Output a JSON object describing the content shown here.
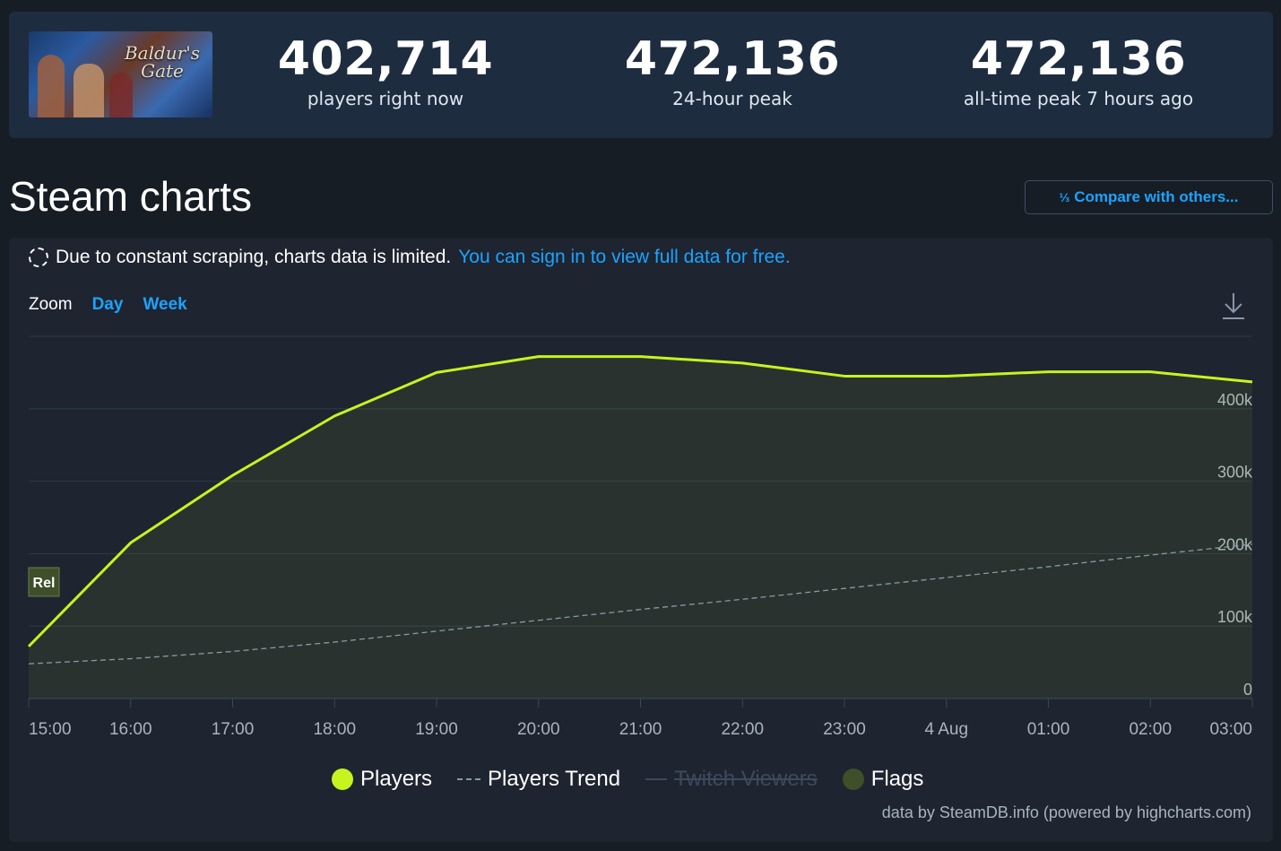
{
  "game": {
    "art_label": "Baldur's Gate"
  },
  "stats": [
    {
      "value": "402,714",
      "label": "players right now"
    },
    {
      "value": "472,136",
      "label": "24-hour peak"
    },
    {
      "value": "472,136",
      "label": "all-time peak 7 hours ago"
    }
  ],
  "page_title": "Steam charts",
  "compare_button": {
    "icon": "fraction-icon",
    "label": "Compare with others..."
  },
  "notice": {
    "text": "Due to constant scraping, charts data is limited.",
    "link": "You can sign in to view full data for free."
  },
  "zoom": {
    "label": "Zoom",
    "options": [
      "Day",
      "Week"
    ]
  },
  "colors": {
    "players": "#c6f41e",
    "trend": "#8a98a8",
    "flags": "#3e4f2a",
    "link": "#1aa4ff"
  },
  "flag_marker": {
    "label": "Rel"
  },
  "legend": [
    {
      "label": "Players",
      "state": "active"
    },
    {
      "label": "Players Trend",
      "state": "active"
    },
    {
      "label": "Twitch Viewers",
      "state": "disabled"
    },
    {
      "label": "Flags",
      "state": "active"
    }
  ],
  "credit": "data by SteamDB.info (powered by highcharts.com)",
  "chart_data": {
    "type": "line",
    "x": [
      "15:00",
      "16:00",
      "17:00",
      "18:00",
      "19:00",
      "20:00",
      "21:00",
      "22:00",
      "23:00",
      "4 Aug",
      "01:00",
      "02:00",
      "03:00"
    ],
    "ylim": [
      0,
      500000
    ],
    "yticks": [
      "0",
      "100k",
      "200k",
      "300k",
      "400k"
    ],
    "yticks_values": [
      0,
      100000,
      200000,
      300000,
      400000
    ],
    "grid": true,
    "legend_placement": "bottom",
    "series": [
      {
        "name": "Players",
        "values": [
          72000,
          215000,
          308000,
          390000,
          450000,
          472000,
          472000,
          463000,
          445000,
          445000,
          451000,
          451000,
          437000
        ]
      },
      {
        "name": "Players Trend",
        "values": [
          48000,
          55000,
          65000,
          78000,
          93000,
          108000,
          123000,
          137000,
          152000,
          167000,
          182000,
          198000,
          213000
        ]
      }
    ]
  }
}
